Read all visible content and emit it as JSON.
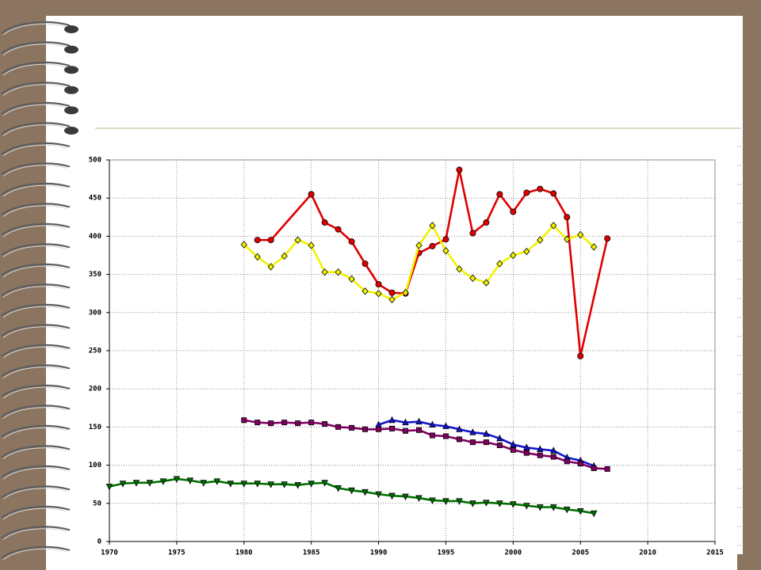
{
  "chart_data": {
    "type": "line",
    "xlim": [
      1970,
      2015
    ],
    "xticks": [
      1970,
      1975,
      1980,
      1985,
      1990,
      1995,
      2000,
      2005,
      2010,
      2015
    ],
    "ylim": [
      0,
      500
    ],
    "yticks": [
      0,
      50,
      100,
      150,
      200,
      250,
      300,
      350,
      400,
      450,
      500
    ],
    "grid": true,
    "series": [
      {
        "color": "#e00000",
        "marker": "circle",
        "x": [
          1981,
          1982,
          1985,
          1986,
          1987,
          1988,
          1989,
          1990,
          1991,
          1992,
          1993,
          1994,
          1995,
          1996,
          1997,
          1998,
          1999,
          2000,
          2001,
          2002,
          2003,
          2004,
          2005,
          2007
        ],
        "values": [
          395,
          395,
          455,
          418,
          409,
          393,
          364,
          337,
          326,
          325,
          378,
          387,
          396,
          487,
          404,
          418,
          455,
          432,
          457,
          462,
          456,
          425,
          243,
          397
        ]
      },
      {
        "color": "#f2f200",
        "marker": "diamond",
        "x": [
          1980,
          1981,
          1982,
          1983,
          1984,
          1985,
          1986,
          1987,
          1988,
          1989,
          1990,
          1991,
          1992,
          1993,
          1994,
          1995,
          1996,
          1997,
          1998,
          1999,
          2000,
          2001,
          2002,
          2003,
          2004,
          2005,
          2006
        ],
        "values": [
          389,
          373,
          360,
          374,
          395,
          388,
          353,
          353,
          344,
          328,
          325,
          317,
          326,
          388,
          414,
          381,
          357,
          345,
          339,
          364,
          375,
          380,
          395,
          414,
          396,
          402,
          386
        ]
      },
      {
        "color": "#1414d0",
        "marker": "triangle",
        "x": [
          1990,
          1991,
          1992,
          1993,
          1994,
          1995,
          1996,
          1997,
          1998,
          1999,
          2000,
          2001,
          2002,
          2003,
          2004,
          2005,
          2006
        ],
        "values": [
          153,
          159,
          156,
          157,
          153,
          151,
          147,
          143,
          141,
          135,
          127,
          123,
          121,
          119,
          110,
          106,
          99
        ]
      },
      {
        "color": "#800060",
        "marker": "square",
        "x": [
          1980,
          1981,
          1982,
          1983,
          1984,
          1985,
          1986,
          1987,
          1988,
          1989,
          1990,
          1991,
          1992,
          1993,
          1994,
          1995,
          1996,
          1997,
          1998,
          1999,
          2000,
          2001,
          2002,
          2003,
          2004,
          2005,
          2006,
          2007
        ],
        "values": [
          159,
          156,
          155,
          156,
          155,
          156,
          154,
          150,
          149,
          147,
          147,
          148,
          145,
          146,
          139,
          138,
          134,
          130,
          130,
          126,
          120,
          116,
          113,
          111,
          105,
          102,
          96,
          95
        ]
      },
      {
        "color": "#007000",
        "marker": "triangle-down",
        "x": [
          1970,
          1971,
          1972,
          1973,
          1974,
          1975,
          1976,
          1977,
          1978,
          1979,
          1980,
          1981,
          1982,
          1983,
          1984,
          1985,
          1986,
          1987,
          1988,
          1989,
          1990,
          1991,
          1992,
          1993,
          1994,
          1995,
          1996,
          1997,
          1998,
          1999,
          2000,
          2001,
          2002,
          2003,
          2004,
          2005,
          2006
        ],
        "values": [
          72,
          76,
          77,
          77,
          79,
          82,
          80,
          77,
          79,
          76,
          76,
          76,
          75,
          75,
          74,
          76,
          77,
          70,
          67,
          65,
          62,
          60,
          59,
          57,
          54,
          53,
          53,
          50,
          51,
          50,
          49,
          47,
          45,
          45,
          42,
          40,
          37
        ]
      }
    ]
  }
}
